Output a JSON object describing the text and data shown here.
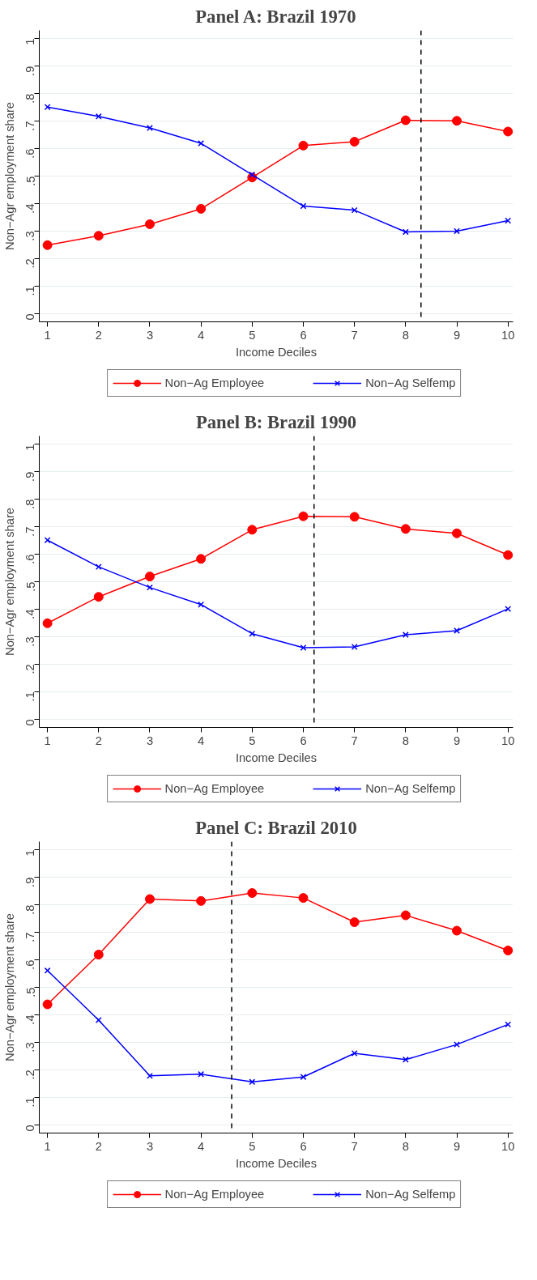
{
  "chart_data": [
    {
      "type": "line",
      "title": "Panel A: Brazil 1970",
      "xlabel": "Income Deciles",
      "ylabel": "Non−Agr employment share",
      "x": [
        1,
        2,
        3,
        4,
        5,
        6,
        7,
        8,
        9,
        10
      ],
      "xlim": [
        0.84,
        10.1
      ],
      "xticks": [
        1,
        2,
        3,
        4,
        5,
        6,
        7,
        8,
        9,
        10
      ],
      "ylim": [
        -0.03,
        1.03
      ],
      "yticks": [
        {
          "value": 0,
          "label": "0"
        },
        {
          "value": 0.1,
          "label": ".1"
        },
        {
          "value": 0.2,
          "label": ".2"
        },
        {
          "value": 0.3,
          "label": ".3"
        },
        {
          "value": 0.4,
          "label": ".4"
        },
        {
          "value": 0.5,
          "label": ".5"
        },
        {
          "value": 0.6,
          "label": ".6"
        },
        {
          "value": 0.7,
          "label": ".7"
        },
        {
          "value": 0.8,
          "label": ".8"
        },
        {
          "value": 0.9,
          "label": ".9"
        },
        {
          "value": 1,
          "label": "1"
        }
      ],
      "grid": "y",
      "legend": "bottom",
      "line_style": "solid",
      "series": [
        {
          "name": "Non−Ag Employee",
          "color": "#ff0000",
          "marker": "circle",
          "values": [
            0.249,
            0.283,
            0.325,
            0.381,
            0.495,
            0.611,
            0.625,
            0.703,
            0.701,
            0.662
          ]
        },
        {
          "name": "Non−Ag Selfemp",
          "color": "#0000ff",
          "marker": "cross",
          "values": [
            0.751,
            0.717,
            0.675,
            0.619,
            0.505,
            0.391,
            0.376,
            0.297,
            0.3,
            0.338
          ]
        }
      ],
      "ref_lines": [
        {
          "axis": "x",
          "value": 8.3,
          "color": "#000000",
          "line_style": "dashed"
        }
      ]
    },
    {
      "type": "line",
      "title": "Panel B: Brazil 1990",
      "xlabel": "Income Deciles",
      "ylabel": "Non−Agr employment share",
      "x": [
        1,
        2,
        3,
        4,
        5,
        6,
        7,
        8,
        9,
        10
      ],
      "xlim": [
        0.84,
        10.1
      ],
      "xticks": [
        1,
        2,
        3,
        4,
        5,
        6,
        7,
        8,
        9,
        10
      ],
      "ylim": [
        -0.03,
        1.03
      ],
      "yticks": [
        {
          "value": 0,
          "label": "0"
        },
        {
          "value": 0.1,
          "label": ".1"
        },
        {
          "value": 0.2,
          "label": ".2"
        },
        {
          "value": 0.3,
          "label": ".3"
        },
        {
          "value": 0.4,
          "label": ".4"
        },
        {
          "value": 0.5,
          "label": ".5"
        },
        {
          "value": 0.6,
          "label": ".6"
        },
        {
          "value": 0.7,
          "label": ".7"
        },
        {
          "value": 0.8,
          "label": ".8"
        },
        {
          "value": 0.9,
          "label": ".9"
        },
        {
          "value": 1,
          "label": "1"
        }
      ],
      "grid": "y",
      "legend": "bottom",
      "line_style": "solid",
      "series": [
        {
          "name": "Non−Ag Employee",
          "color": "#ff0000",
          "marker": "circle",
          "values": [
            0.349,
            0.445,
            0.519,
            0.583,
            0.689,
            0.738,
            0.736,
            0.692,
            0.676,
            0.597
          ]
        },
        {
          "name": "Non−Ag Selfemp",
          "color": "#0000ff",
          "marker": "cross",
          "values": [
            0.651,
            0.554,
            0.479,
            0.417,
            0.311,
            0.26,
            0.263,
            0.307,
            0.322,
            0.401
          ]
        }
      ],
      "ref_lines": [
        {
          "axis": "x",
          "value": 6.21,
          "color": "#000000",
          "line_style": "dashed"
        }
      ]
    },
    {
      "type": "line",
      "title": "Panel C: Brazil 2010",
      "xlabel": "Income Deciles",
      "ylabel": "Non−Agr employment share",
      "x": [
        1,
        2,
        3,
        4,
        5,
        6,
        7,
        8,
        9,
        10
      ],
      "xlim": [
        0.84,
        10.1
      ],
      "xticks": [
        1,
        2,
        3,
        4,
        5,
        6,
        7,
        8,
        9,
        10
      ],
      "ylim": [
        -0.03,
        1.03
      ],
      "yticks": [
        {
          "value": 0,
          "label": "0"
        },
        {
          "value": 0.1,
          "label": ".1"
        },
        {
          "value": 0.2,
          "label": ".2"
        },
        {
          "value": 0.3,
          "label": ".3"
        },
        {
          "value": 0.4,
          "label": ".4"
        },
        {
          "value": 0.5,
          "label": ".5"
        },
        {
          "value": 0.6,
          "label": ".6"
        },
        {
          "value": 0.7,
          "label": ".7"
        },
        {
          "value": 0.8,
          "label": ".8"
        },
        {
          "value": 0.9,
          "label": ".9"
        },
        {
          "value": 1,
          "label": "1"
        }
      ],
      "grid": "y",
      "legend": "bottom",
      "line_style": "solid",
      "series": [
        {
          "name": "Non−Ag Employee",
          "color": "#ff0000",
          "marker": "circle",
          "values": [
            0.438,
            0.619,
            0.821,
            0.814,
            0.843,
            0.825,
            0.737,
            0.762,
            0.706,
            0.634
          ]
        },
        {
          "name": "Non−Ag Selfemp",
          "color": "#0000ff",
          "marker": "cross",
          "values": [
            0.561,
            0.381,
            0.178,
            0.184,
            0.156,
            0.174,
            0.26,
            0.237,
            0.292,
            0.365
          ]
        }
      ],
      "ref_lines": [
        {
          "axis": "x",
          "value": 4.6,
          "color": "#000000",
          "line_style": "dashed"
        }
      ]
    }
  ]
}
